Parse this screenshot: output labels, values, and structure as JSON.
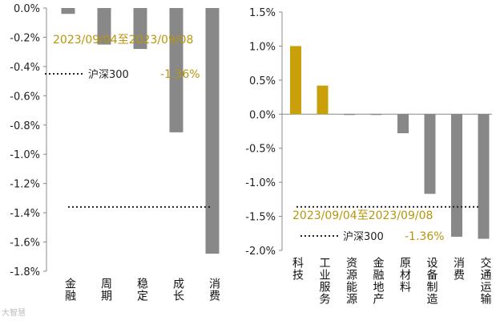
{
  "chart_data": [
    {
      "type": "bar",
      "categories": [
        "金融",
        "周期",
        "稳定",
        "成长",
        "消费"
      ],
      "values": [
        -0.04,
        -0.25,
        -0.28,
        -0.85,
        -1.68
      ],
      "bar_colors": [
        "#888888",
        "#888888",
        "#888888",
        "#888888",
        "#888888"
      ],
      "ylim": [
        -1.8,
        0.0
      ],
      "yticks": [
        0.0,
        -0.2,
        -0.4,
        -0.6,
        -0.8,
        -1.0,
        -1.2,
        -1.4,
        -1.6,
        -1.8
      ],
      "ytick_labels": [
        "0.0%",
        "-0.2%",
        "-0.4%",
        "-0.6%",
        "-0.8%",
        "-1.0%",
        "-1.2%",
        "-1.4%",
        "-1.6%",
        "-1.8%"
      ],
      "benchmark": {
        "name": "沪深300",
        "value": -1.36,
        "value_label": "-1.36%",
        "style": "dotted"
      },
      "annotation": "2023/09/04至2023/09/08",
      "grid": false
    },
    {
      "type": "bar",
      "categories": [
        "科技",
        "工业服务",
        "资源能源",
        "金融地产",
        "原材料",
        "设备制造",
        "消费",
        "交通运输"
      ],
      "values": [
        1.0,
        0.42,
        0.0,
        0.0,
        -0.28,
        -1.17,
        -1.8,
        -1.83
      ],
      "bar_colors": [
        "#c9a00a",
        "#c9a00a",
        "#888888",
        "#888888",
        "#888888",
        "#888888",
        "#888888",
        "#888888"
      ],
      "ylim": [
        -2.0,
        1.5
      ],
      "yticks": [
        1.5,
        1.0,
        0.5,
        0.0,
        -0.5,
        -1.0,
        -1.5,
        -2.0
      ],
      "ytick_labels": [
        "1.5%",
        "1.0%",
        "0.5%",
        "0.0%",
        "-0.5%",
        "-1.0%",
        "-1.5%",
        "-2.0%"
      ],
      "benchmark": {
        "name": "沪深300",
        "value": -1.36,
        "value_label": "-1.36%",
        "style": "dotted"
      },
      "annotation": "2023/09/04至2023/09/08",
      "grid": false
    }
  ],
  "watermark": "大智慧"
}
